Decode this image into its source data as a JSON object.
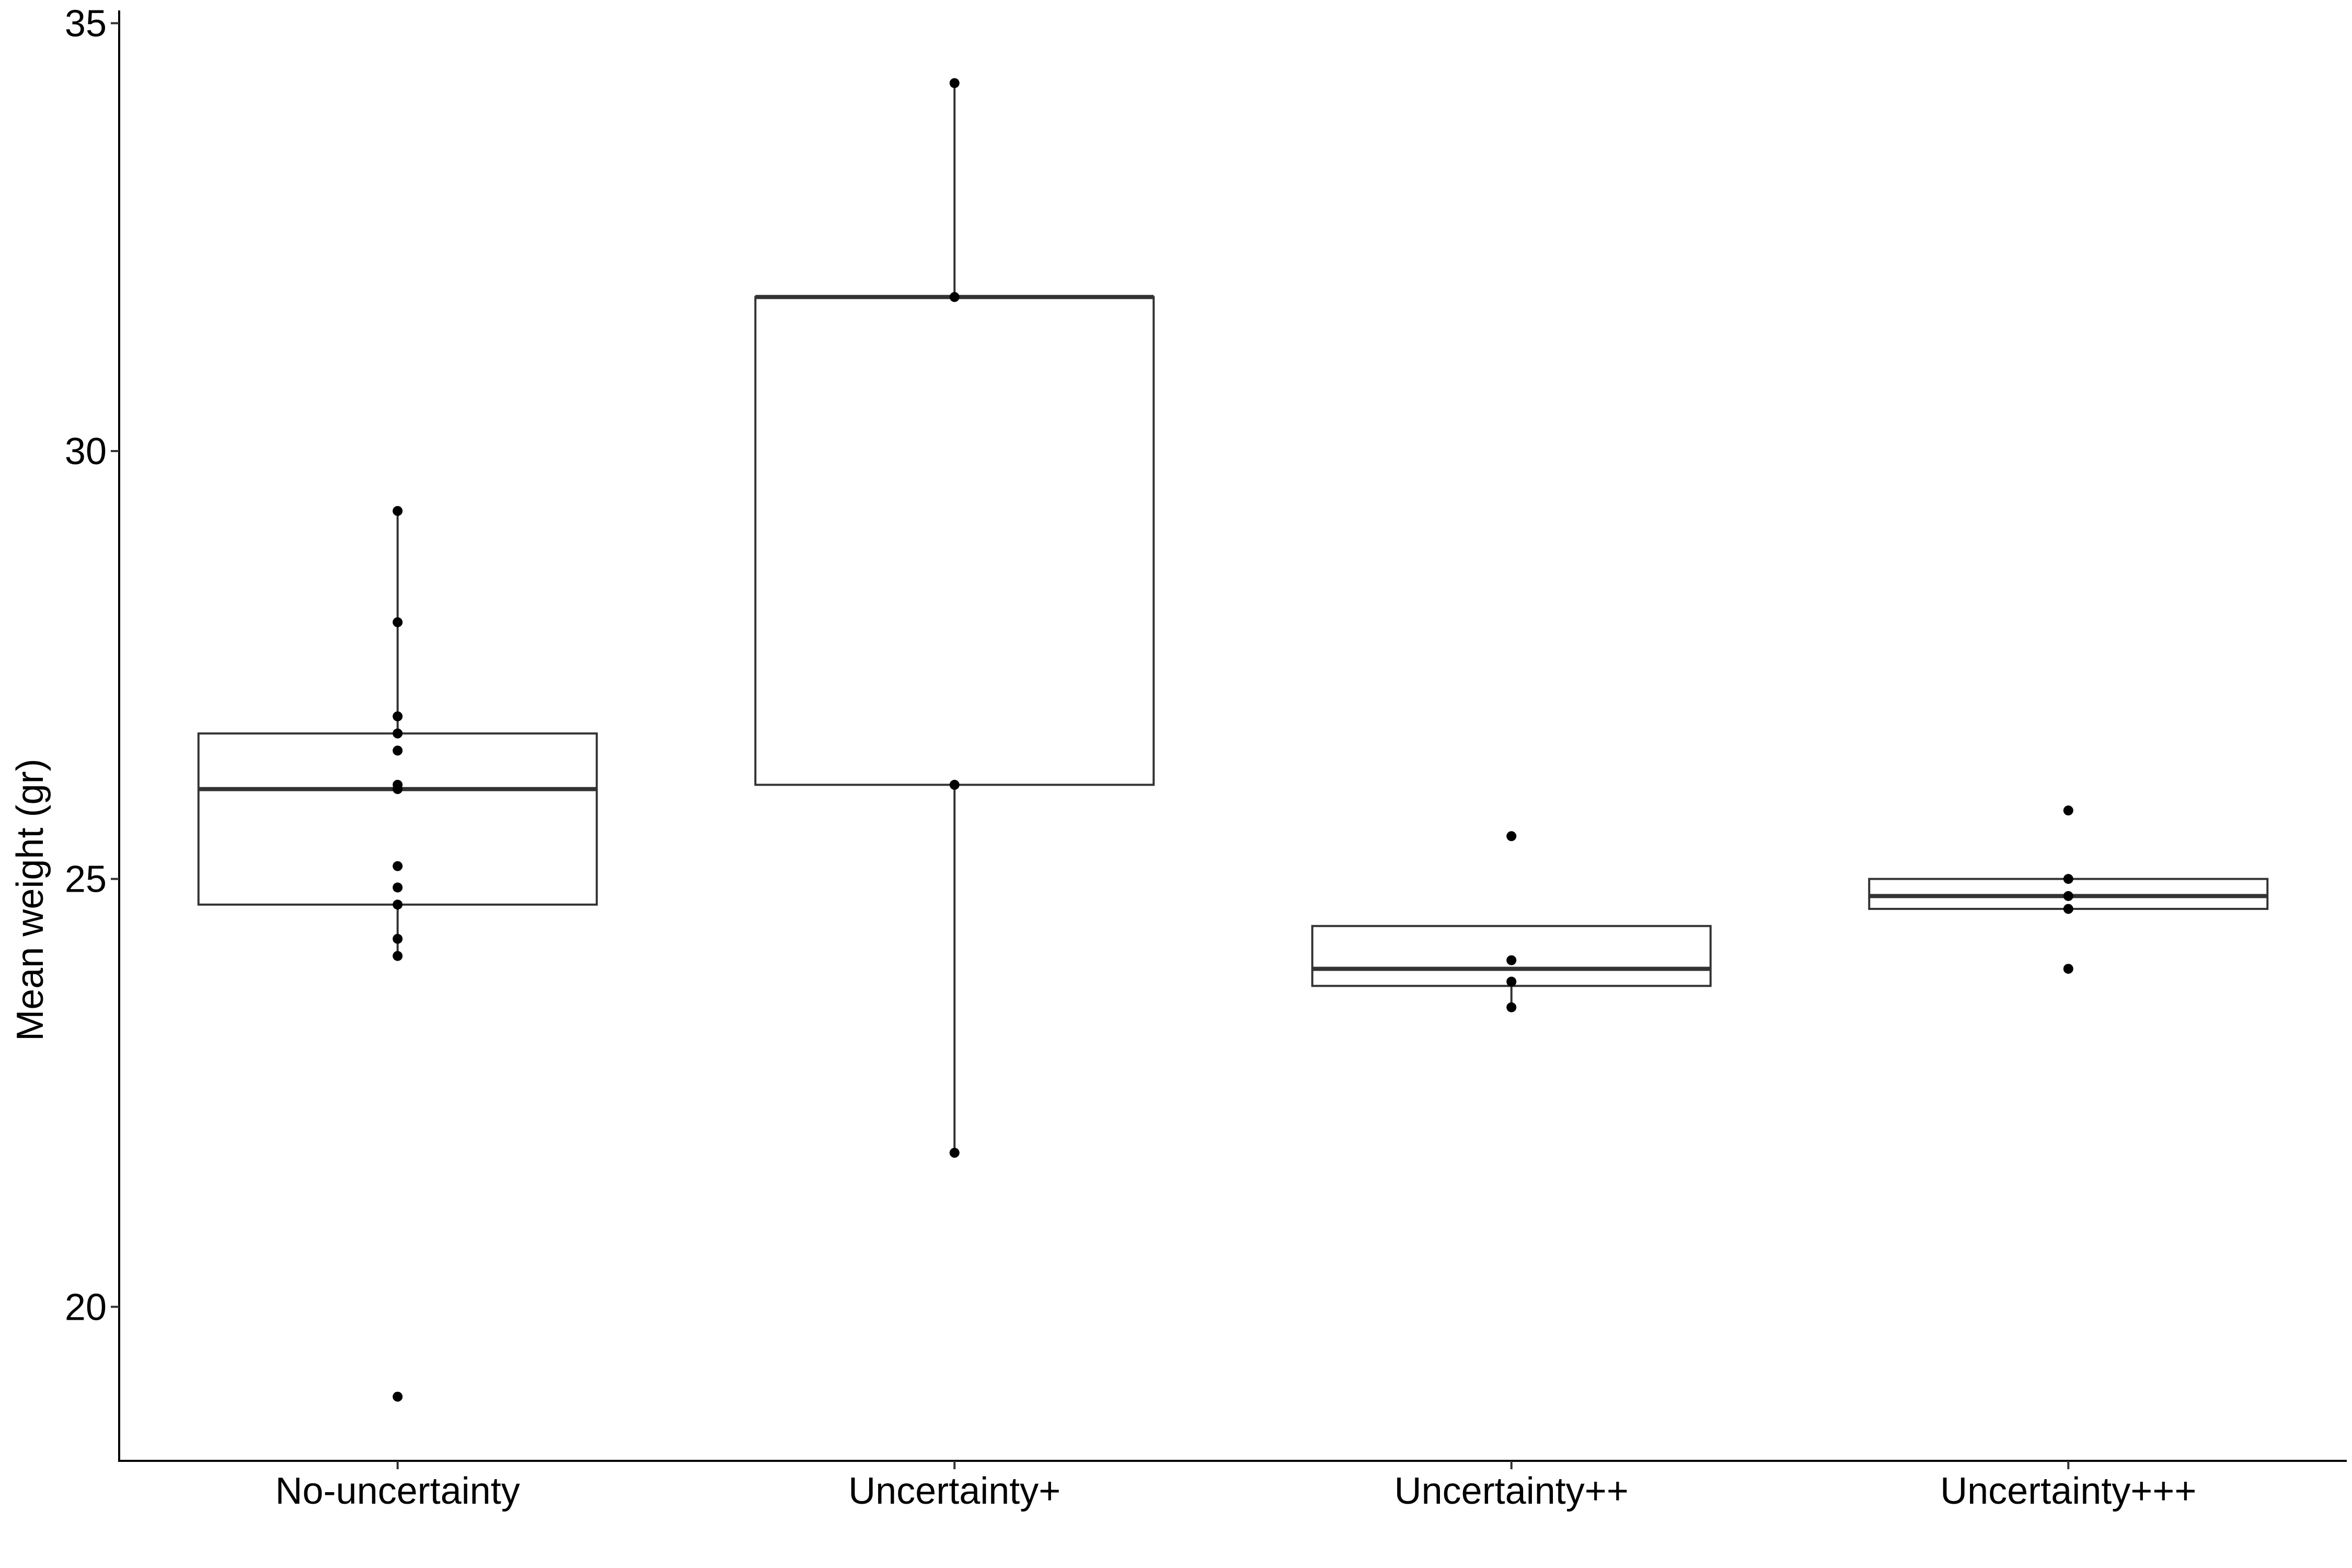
{
  "chart_data": {
    "type": "box",
    "title": "",
    "xlabel": "",
    "ylabel": "Mean weight (gr)",
    "ylim": [
      18.2,
      35.1
    ],
    "yticks": [
      20,
      25,
      30,
      35
    ],
    "ytick_labels": [
      "20",
      "25",
      "30",
      "35"
    ],
    "categories": [
      "No-uncertainty",
      "Uncertainty+",
      "Uncertainty++",
      "Uncertainty+++"
    ],
    "grid": false,
    "legend": "none",
    "boxes": [
      {
        "category": "No-uncertainty",
        "q1": 24.7,
        "median": 26.05,
        "q3": 26.7,
        "whisker_low": 24.1,
        "whisker_high": 29.3,
        "points": [
          29.3,
          28.0,
          26.9,
          26.7,
          26.5,
          26.1,
          26.05,
          25.15,
          24.9,
          24.7,
          24.3,
          24.1,
          18.95
        ]
      },
      {
        "category": "Uncertainty+",
        "q1": 26.1,
        "median": 31.8,
        "q3": 31.8,
        "whisker_low": 21.8,
        "whisker_high": 34.3,
        "points": [
          34.3,
          31.8,
          26.1,
          21.8
        ]
      },
      {
        "category": "Uncertainty++",
        "q1": 23.75,
        "median": 23.95,
        "q3": 24.45,
        "whisker_low": 23.5,
        "whisker_high": 24.45,
        "points": [
          25.5,
          24.05,
          23.8,
          23.5
        ]
      },
      {
        "category": "Uncertainty+++",
        "q1": 24.65,
        "median": 24.8,
        "q3": 25.0,
        "whisker_low": 24.65,
        "whisker_high": 25.0,
        "points": [
          25.8,
          25.0,
          24.8,
          24.65,
          23.95
        ]
      }
    ]
  }
}
